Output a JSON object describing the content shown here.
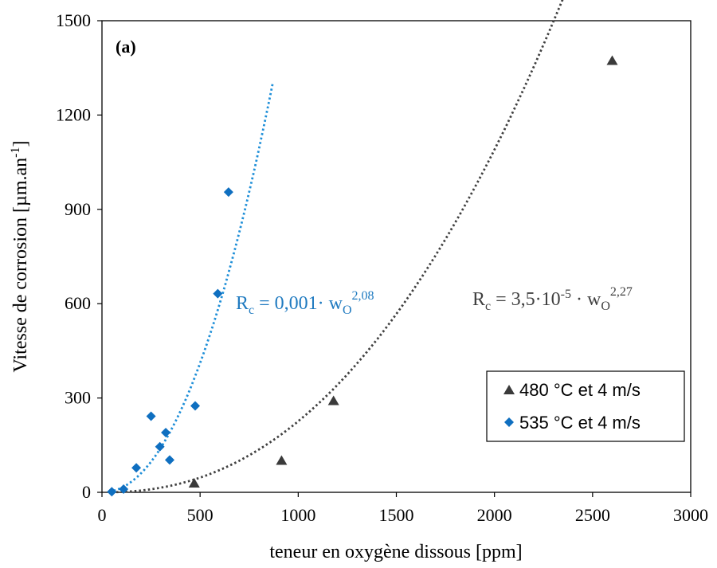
{
  "chart_data": {
    "type": "scatter",
    "panel_label": "(a)",
    "xlabel": "teneur en oxygène dissous [ppm]",
    "ylabel": "Vitesse de corrosion [µm.an",
    "ylabel_sup": "-1",
    "ylabel_close": "]",
    "xlim": [
      0,
      3000
    ],
    "ylim": [
      0,
      1500
    ],
    "xticks": [
      0,
      500,
      1000,
      1500,
      2000,
      2500,
      3000
    ],
    "yticks": [
      0,
      300,
      600,
      900,
      1200,
      1500
    ],
    "grid": false,
    "legend_position": "bottom-right",
    "series": [
      {
        "name": "480 °C et 4 m/s",
        "marker": "triangle",
        "color": "#3a3a3a",
        "x": [
          470,
          915,
          1180,
          2600
        ],
        "y": [
          28,
          100,
          290,
          1372
        ],
        "trendline": {
          "style": "dotted",
          "color": "#404040",
          "coef": 3.5e-05,
          "exponent": 2.27,
          "x_range": [
            50,
            2630
          ],
          "equation": {
            "lhs": "R",
            "lhs_sub": "c",
            "part1": " = 3,5·10",
            "sup1": "-5",
            "part2": " · w",
            "sub2": "O",
            "sup2": "2,27"
          }
        }
      },
      {
        "name": "535 °C et 4 m/s",
        "marker": "diamond",
        "color": "#0f6fc0",
        "x": [
          50,
          110,
          175,
          250,
          295,
          325,
          345,
          475,
          590,
          645
        ],
        "y": [
          2,
          10,
          78,
          242,
          145,
          190,
          103,
          275,
          632,
          955
        ],
        "trendline": {
          "style": "dotted",
          "color": "#1f8fd8",
          "coef": 0.001,
          "exponent": 2.08,
          "x_range": [
            60,
            870
          ],
          "equation": {
            "lhs": "R",
            "lhs_sub": "c",
            "part1": " = 0,001· w",
            "sub1": "O",
            "sup1": "2,08"
          }
        }
      }
    ]
  }
}
